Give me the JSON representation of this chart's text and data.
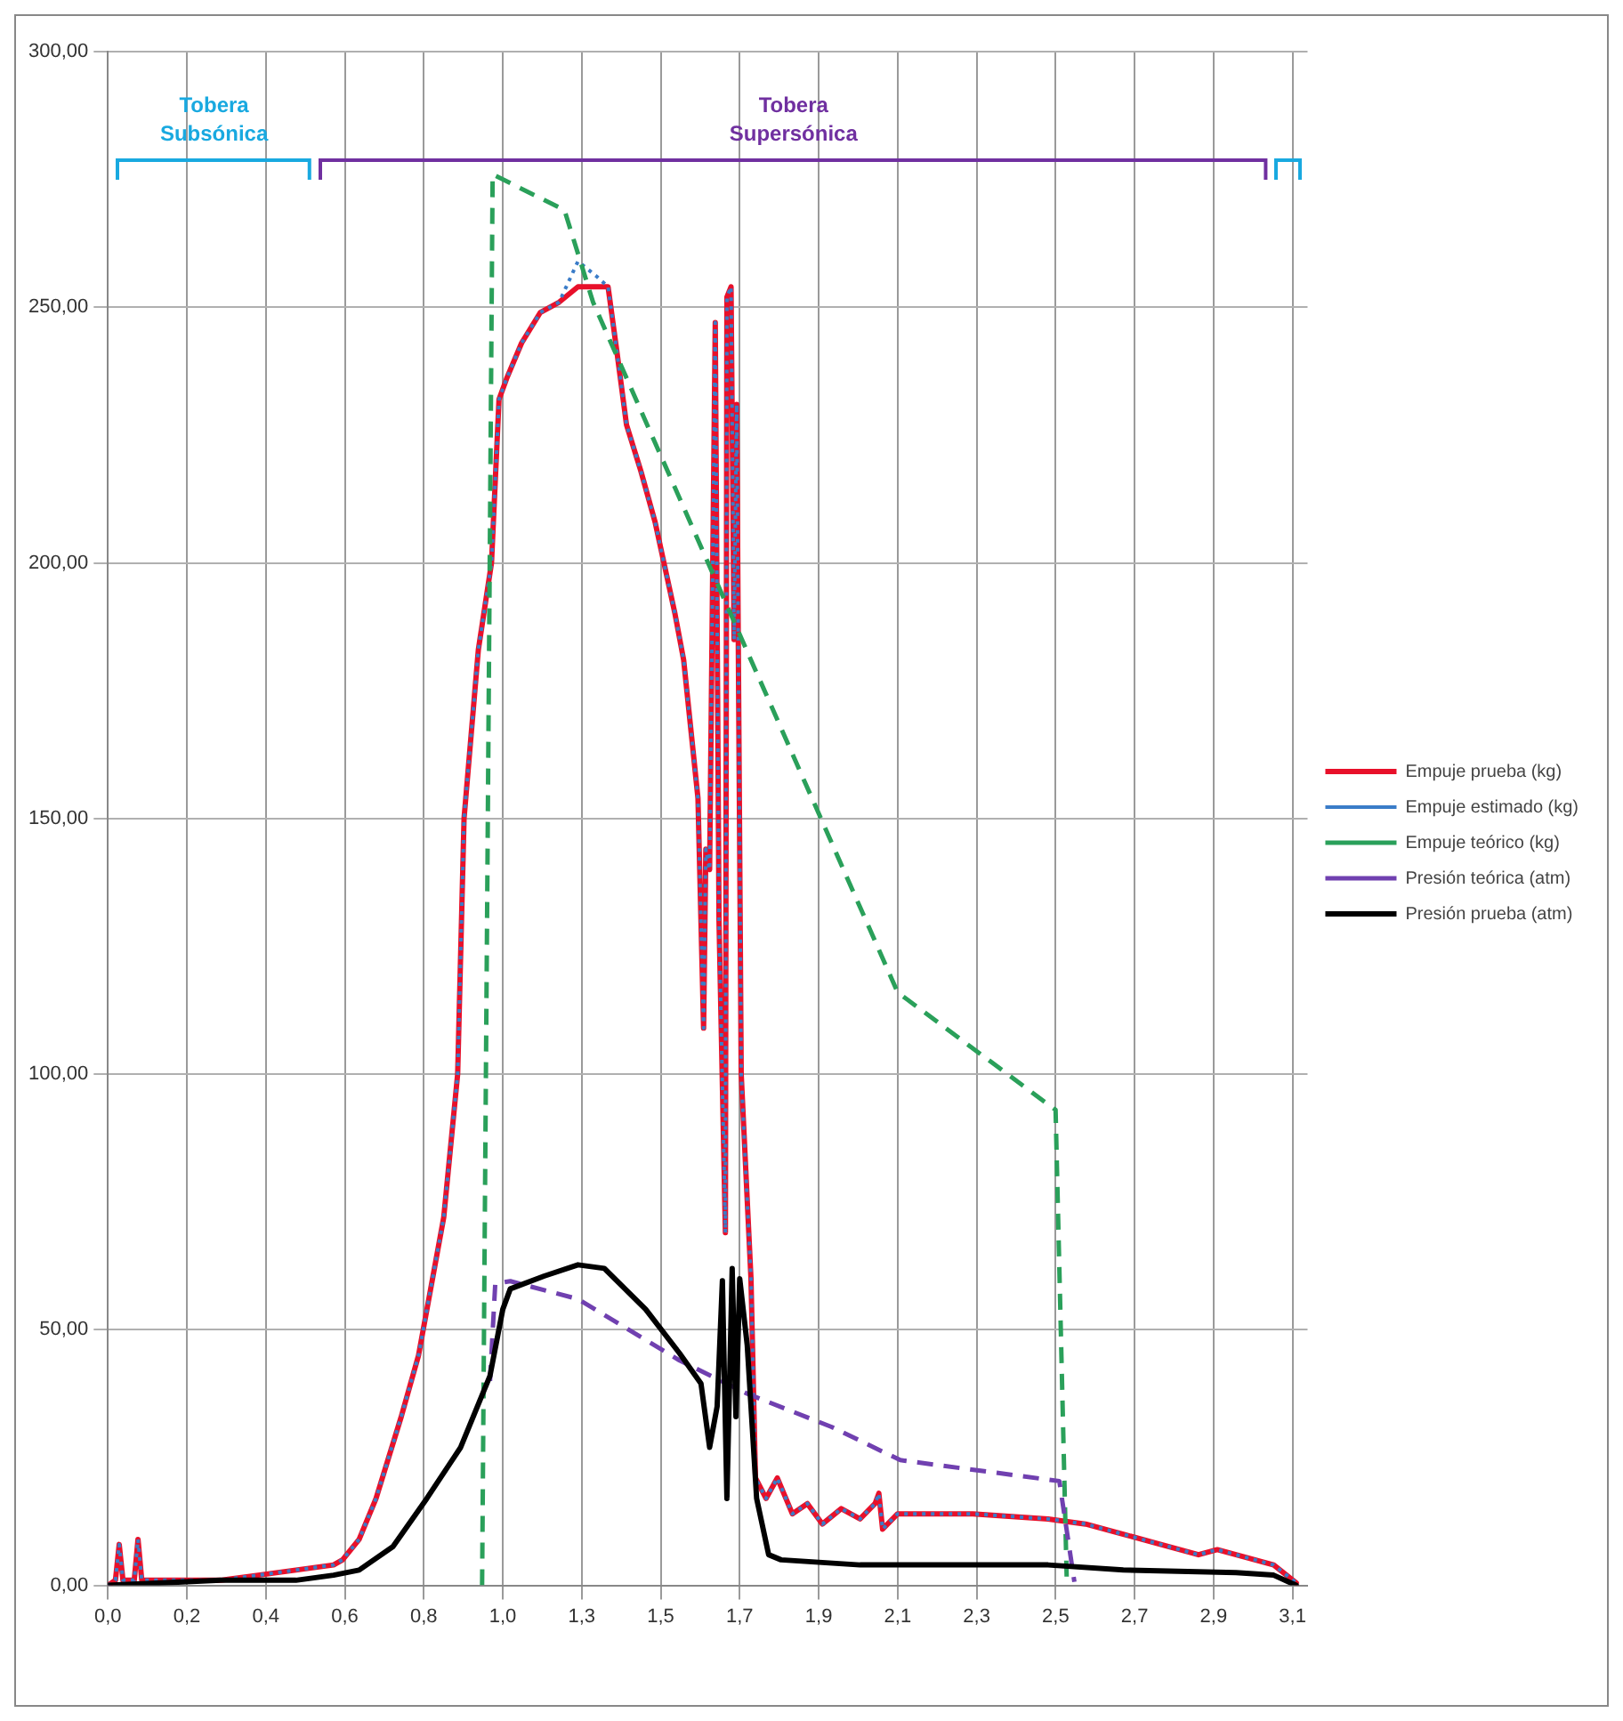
{
  "chart_data": {
    "type": "line",
    "annotations": [
      "Tobera Subsónica",
      "Tobera Supersónica"
    ],
    "xlim": [
      0,
      3.19
    ],
    "xticks": [
      {
        "value": 0,
        "label": "0,0"
      },
      {
        "value": 0.21,
        "label": "0,2"
      },
      {
        "value": 0.42,
        "label": "0,4"
      },
      {
        "value": 0.63,
        "label": "0,6"
      },
      {
        "value": 0.84,
        "label": "0,8"
      },
      {
        "value": 1.05,
        "label": "1,0"
      },
      {
        "value": 1.26,
        "label": "1,3"
      },
      {
        "value": 1.47,
        "label": "1,5"
      },
      {
        "value": 1.68,
        "label": "1,7"
      },
      {
        "value": 1.89,
        "label": "1,9"
      },
      {
        "value": 2.1,
        "label": "2,1"
      },
      {
        "value": 2.31,
        "label": "2,3"
      },
      {
        "value": 2.52,
        "label": "2,5"
      },
      {
        "value": 2.73,
        "label": "2,7"
      },
      {
        "value": 2.94,
        "label": "2,9"
      },
      {
        "value": 3.15,
        "label": "3,1"
      }
    ],
    "ylim": [
      0,
      300
    ],
    "yticks": [
      {
        "value": 0,
        "label": "0,00"
      },
      {
        "value": 50,
        "label": "50,00"
      },
      {
        "value": 100,
        "label": "100,00"
      },
      {
        "value": 150,
        "label": "150,00"
      },
      {
        "value": 200,
        "label": "200,00"
      },
      {
        "value": 250,
        "label": "250,00"
      },
      {
        "value": 300,
        "label": "300,00"
      }
    ],
    "grid": true,
    "legend": "right",
    "marker": "none",
    "series": [
      {
        "name": "Empuje prueba (kg)",
        "color": "#e8102a",
        "line_style": "solid",
        "x": [
          0,
          0.02,
          0.03,
          0.04,
          0.07,
          0.08,
          0.09,
          0.12,
          0.3,
          0.4,
          0.5,
          0.6,
          0.624,
          0.668,
          0.713,
          0.78,
          0.826,
          0.893,
          0.93,
          0.947,
          0.985,
          1.02,
          1.04,
          1.06,
          1.1,
          1.15,
          1.2,
          1.25,
          1.3,
          1.33,
          1.354,
          1.379,
          1.417,
          1.455,
          1.508,
          1.531,
          1.569,
          1.584,
          1.59,
          1.6,
          1.615,
          1.625,
          1.642,
          1.646,
          1.657,
          1.665,
          1.672,
          1.684,
          1.71,
          1.722,
          1.75,
          1.78,
          1.82,
          1.86,
          1.9,
          1.95,
          2.0,
          2.04,
          2.05,
          2.06,
          2.1,
          2.3,
          2.5,
          2.6,
          2.7,
          2.8,
          2.9,
          2.95,
          3.05,
          3.1,
          3.16
        ],
        "values": [
          0,
          1,
          8,
          1,
          1,
          9,
          1,
          1,
          1,
          2,
          3,
          4,
          5,
          9,
          17,
          33,
          45,
          72,
          100,
          150,
          183,
          200,
          232,
          236,
          243,
          249,
          251,
          254,
          254,
          254,
          241,
          227,
          218,
          208,
          190,
          181,
          154,
          109,
          144,
          140,
          247,
          130,
          69,
          252,
          254,
          185,
          231,
          100,
          60,
          21,
          17,
          21,
          14,
          16,
          12,
          15,
          13,
          16,
          18,
          11,
          14,
          14,
          13,
          12,
          10,
          8,
          6,
          7,
          5,
          4,
          0.5
        ]
      },
      {
        "name": "Empuje estimado (kg)",
        "color": "#3a7cc8",
        "line_style": "dotted",
        "x": [
          0,
          0.02,
          0.03,
          0.04,
          0.07,
          0.08,
          0.09,
          0.12,
          0.3,
          0.4,
          0.5,
          0.6,
          0.624,
          0.668,
          0.713,
          0.78,
          0.826,
          0.893,
          0.93,
          0.947,
          0.985,
          1.02,
          1.04,
          1.06,
          1.1,
          1.15,
          1.2,
          1.25,
          1.3,
          1.33,
          1.354,
          1.379,
          1.417,
          1.455,
          1.508,
          1.531,
          1.569,
          1.584,
          1.59,
          1.6,
          1.615,
          1.625,
          1.642,
          1.646,
          1.657,
          1.665,
          1.672,
          1.684,
          1.71,
          1.722,
          1.75,
          1.78,
          1.82,
          1.86,
          1.9,
          1.95,
          2.0,
          2.04,
          2.05,
          2.06,
          2.1,
          2.3,
          2.5,
          2.6,
          2.7,
          2.8,
          2.9,
          2.95,
          3.05,
          3.1,
          3.16
        ],
        "values": [
          0,
          1,
          8,
          1,
          1,
          9,
          1,
          1,
          1,
          2,
          3,
          4,
          5,
          9,
          17,
          33,
          45,
          72,
          100,
          150,
          183,
          200,
          232,
          236,
          243,
          249,
          251,
          259,
          256,
          254,
          241,
          227,
          218,
          208,
          190,
          181,
          154,
          109,
          144,
          140,
          247,
          130,
          69,
          252,
          254,
          185,
          231,
          100,
          60,
          21,
          17,
          21,
          14,
          16,
          12,
          15,
          13,
          16,
          18,
          11,
          14,
          14,
          13,
          12,
          10,
          8,
          6,
          7,
          5,
          4,
          0.5
        ]
      },
      {
        "name": "Empuje teórico (kg)",
        "color": "#2aa05a",
        "line_style": "dashed",
        "x": [
          0.995,
          1.023,
          1.214,
          1.29,
          2.1,
          2.52,
          2.55
        ],
        "values": [
          0,
          276,
          269,
          251,
          116,
          93,
          0
        ]
      },
      {
        "name": "Presión teórica (atm)",
        "color": "#7040b0",
        "line_style": "dashed",
        "x": [
          1.016,
          1.03,
          1.07,
          1.25,
          1.52,
          1.7,
          1.924,
          2.107,
          2.53,
          2.57
        ],
        "values": [
          40,
          59,
          59.5,
          56,
          44,
          37.5,
          31,
          24.5,
          20.4,
          0.7
        ]
      },
      {
        "name": "Presión prueba (atm)",
        "color": "#000000",
        "line_style": "solid",
        "x": [
          0,
          0.3,
          0.5,
          0.6,
          0.668,
          0.758,
          0.848,
          0.938,
          1.016,
          1.05,
          1.07,
          1.16,
          1.25,
          1.32,
          1.43,
          1.52,
          1.577,
          1.6,
          1.62,
          1.634,
          1.646,
          1.66,
          1.67,
          1.68,
          1.7,
          1.725,
          1.757,
          1.79,
          2.0,
          2.5,
          2.7,
          3.0,
          3.1,
          3.16
        ],
        "values": [
          0,
          1,
          1,
          2,
          3,
          7.6,
          17,
          27,
          41,
          54,
          58,
          60.5,
          62.7,
          62,
          54,
          45.4,
          39.5,
          27,
          35,
          59.6,
          17,
          62,
          33,
          60,
          47,
          17,
          6,
          5,
          4,
          4,
          3,
          2.5,
          2,
          0
        ]
      }
    ]
  }
}
